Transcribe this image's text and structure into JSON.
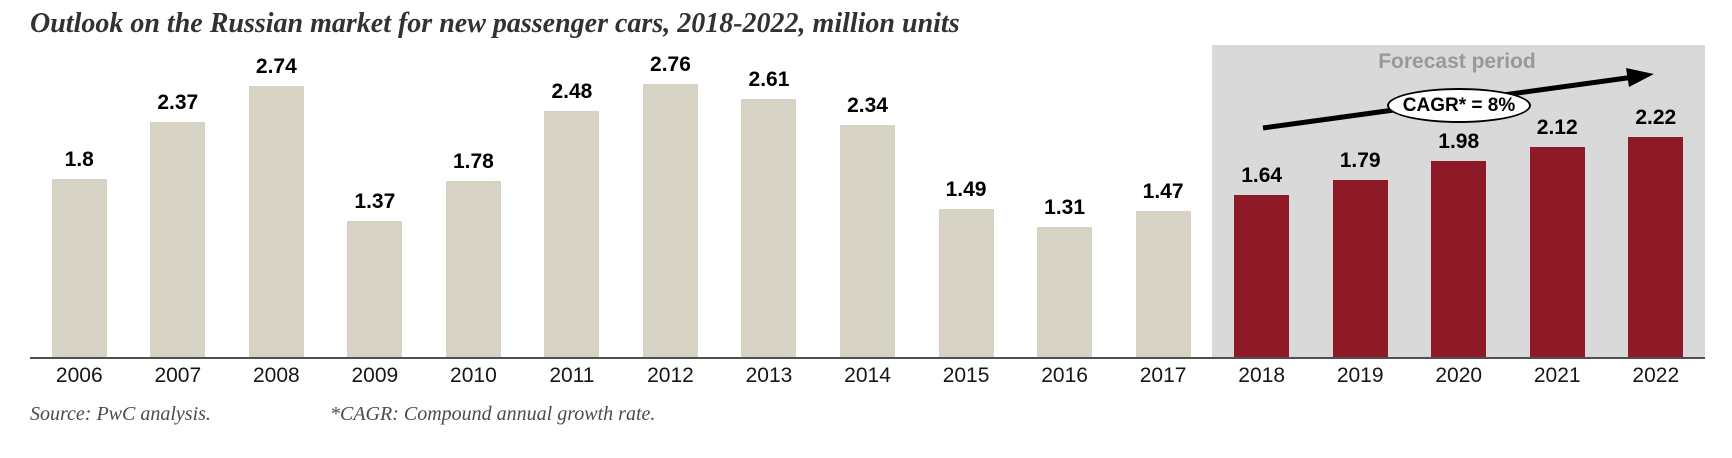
{
  "title": "Outlook on the Russian market for new passenger cars, 2018-2022, million units",
  "forecast": {
    "label": "Forecast period",
    "cagr_label": "CAGR* = 8%"
  },
  "footer": {
    "source": "Source: PwC analysis.",
    "note": "*CAGR: Compound annual growth rate."
  },
  "colors": {
    "historical_bar": "#D6D2C4",
    "forecast_bar": "#8E1A28",
    "forecast_bg": "#D9D9D9",
    "forecast_label": "#999999",
    "axis": "#4f4f4f",
    "arrow": "#000000"
  },
  "chart_data": {
    "type": "bar",
    "title": "Outlook on the Russian market for new passenger cars, 2018-2022, million units",
    "categories": [
      "2006",
      "2007",
      "2008",
      "2009",
      "2010",
      "2011",
      "2012",
      "2013",
      "2014",
      "2015",
      "2016",
      "2017",
      "2018",
      "2019",
      "2020",
      "2021",
      "2022"
    ],
    "values": [
      1.8,
      2.37,
      2.74,
      1.37,
      1.78,
      2.48,
      2.76,
      2.61,
      2.34,
      1.49,
      1.31,
      1.47,
      1.64,
      1.79,
      1.98,
      2.12,
      2.22
    ],
    "forecast_start_index": 12,
    "unit": "million units",
    "xlabel": "",
    "ylabel": "",
    "ylim": [
      0,
      2.9
    ],
    "grid": false,
    "legend": false,
    "annotations": [
      "Forecast period",
      "CAGR* = 8%"
    ]
  }
}
